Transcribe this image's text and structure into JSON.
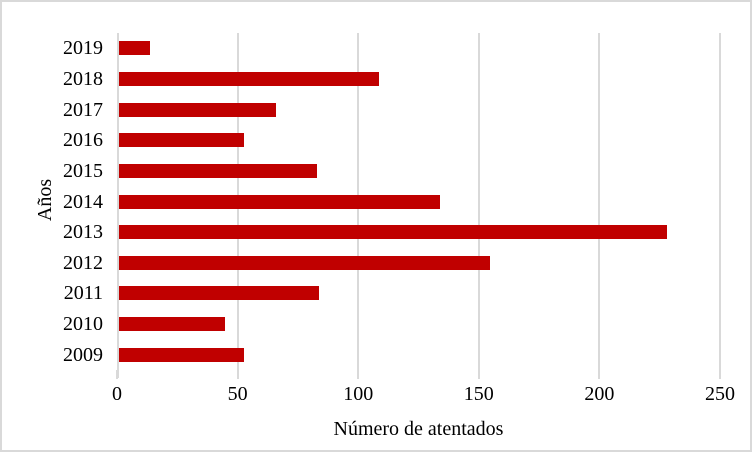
{
  "chart_data": {
    "type": "bar",
    "orientation": "horizontal",
    "title": "",
    "xlabel": "Número de atentados",
    "ylabel": "Años",
    "categories": [
      "2019",
      "2018",
      "2017",
      "2016",
      "2015",
      "2014",
      "2013",
      "2012",
      "2011",
      "2010",
      "2009"
    ],
    "values": [
      13,
      108,
      65,
      52,
      82,
      133,
      227,
      154,
      83,
      44,
      52
    ],
    "xlim": [
      0,
      250
    ],
    "xticks": [
      0,
      50,
      100,
      150,
      200,
      250
    ],
    "grid": true,
    "legend": false,
    "bar_color": "#c00000",
    "gridline_color": "#d9d9d9",
    "axis_line_color": "#d9d9d9",
    "text_color": "#000000",
    "frame_border_color": "#d9d9d9"
  }
}
